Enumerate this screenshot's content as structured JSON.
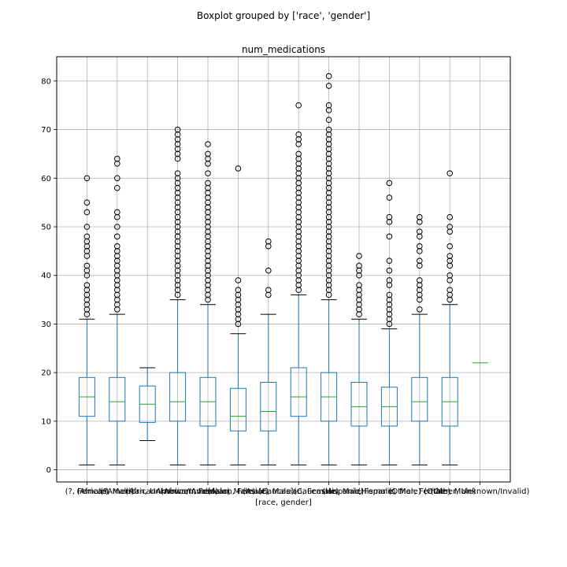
{
  "chart_data": {
    "type": "boxplot",
    "suptitle": "Boxplot grouped by ['race', 'gender']",
    "title": "num_medications",
    "xlabel": "[race, gender]",
    "ylabel": "",
    "ylim": [
      -2.5,
      85
    ],
    "yticks": [
      0,
      10,
      20,
      30,
      40,
      50,
      60,
      70,
      80
    ],
    "grid": true,
    "colors": {
      "box": "#1f77b4",
      "median": "#2ca02c",
      "grid": "#b0b0b0",
      "flier": "#000000"
    },
    "categories": [
      "(?, Female)",
      "(?, Male)",
      "(AfricanAmerican, Unknown/Invalid)",
      "(AfricanAmerican, Female)",
      "(AfricanAmerican, Male)",
      "(Asian, Female)",
      "(Asian, Male)",
      "(Caucasian, Female)",
      "(Caucasian, Male)",
      "(Hispanic, Female)",
      "(Hispanic, Male)",
      "(Other, Female)",
      "(Other, Male)",
      "(Other, Unknown/Invalid)"
    ],
    "boxes": [
      {
        "whislo": 1,
        "q1": 11,
        "med": 15,
        "q3": 19,
        "whishi": 31,
        "fliers": [
          32,
          33,
          34,
          35,
          36,
          37,
          38,
          40,
          41,
          42,
          44,
          45,
          46,
          47,
          48,
          50,
          53,
          55,
          60
        ]
      },
      {
        "whislo": 1,
        "q1": 10,
        "med": 14,
        "q3": 19,
        "whishi": 32,
        "fliers": [
          33,
          34,
          35,
          36,
          37,
          38,
          39,
          40,
          41,
          42,
          43,
          44,
          45,
          46,
          48,
          50,
          52,
          53,
          58,
          60,
          63,
          64
        ]
      },
      {
        "whislo": 6,
        "q1": 9.75,
        "med": 13.5,
        "q3": 17.25,
        "whishi": 21,
        "fliers": []
      },
      {
        "whislo": 1,
        "q1": 10,
        "med": 14,
        "q3": 20,
        "whishi": 35,
        "fliers": [
          36,
          37,
          38,
          39,
          40,
          41,
          42,
          43,
          44,
          45,
          46,
          47,
          48,
          49,
          50,
          51,
          52,
          53,
          54,
          55,
          56,
          57,
          58,
          59,
          60,
          61,
          64,
          65,
          66,
          67,
          68,
          69,
          70
        ]
      },
      {
        "whislo": 1,
        "q1": 9,
        "med": 14,
        "q3": 19,
        "whishi": 34,
        "fliers": [
          35,
          36,
          37,
          38,
          39,
          40,
          41,
          42,
          43,
          44,
          45,
          46,
          47,
          48,
          49,
          50,
          51,
          52,
          53,
          54,
          55,
          56,
          57,
          58,
          59,
          61,
          63,
          64,
          65,
          67
        ]
      },
      {
        "whislo": 1,
        "q1": 8,
        "med": 11,
        "q3": 16.75,
        "whishi": 28,
        "fliers": [
          30,
          31,
          32,
          33,
          34,
          35,
          36,
          37,
          39,
          62
        ]
      },
      {
        "whislo": 1,
        "q1": 8,
        "med": 12,
        "q3": 18,
        "whishi": 32,
        "fliers": [
          36,
          37,
          41,
          46,
          47
        ]
      },
      {
        "whislo": 1,
        "q1": 11,
        "med": 15,
        "q3": 21,
        "whishi": 36,
        "fliers": [
          37,
          38,
          39,
          40,
          41,
          42,
          43,
          44,
          45,
          46,
          47,
          48,
          49,
          50,
          51,
          52,
          53,
          54,
          55,
          56,
          57,
          58,
          59,
          60,
          61,
          62,
          63,
          64,
          65,
          67,
          68,
          69,
          75
        ]
      },
      {
        "whislo": 1,
        "q1": 10,
        "med": 15,
        "q3": 20,
        "whishi": 35,
        "fliers": [
          36,
          37,
          38,
          39,
          40,
          41,
          42,
          43,
          44,
          45,
          46,
          47,
          48,
          49,
          50,
          51,
          52,
          53,
          54,
          55,
          56,
          57,
          58,
          59,
          60,
          61,
          62,
          63,
          64,
          65,
          66,
          67,
          68,
          69,
          70,
          72,
          74,
          75,
          79,
          81
        ]
      },
      {
        "whislo": 1,
        "q1": 9,
        "med": 13,
        "q3": 18,
        "whishi": 31,
        "fliers": [
          32,
          33,
          34,
          35,
          36,
          37,
          38,
          40,
          41,
          42,
          44
        ]
      },
      {
        "whislo": 1,
        "q1": 9,
        "med": 13,
        "q3": 17,
        "whishi": 29,
        "fliers": [
          30,
          31,
          32,
          33,
          34,
          35,
          36,
          38,
          39,
          41,
          43,
          48,
          51,
          52,
          56,
          59
        ]
      },
      {
        "whislo": 1,
        "q1": 10,
        "med": 14,
        "q3": 19,
        "whishi": 32,
        "fliers": [
          33,
          35,
          36,
          37,
          38,
          39,
          42,
          43,
          45,
          46,
          48,
          49,
          51,
          52
        ]
      },
      {
        "whislo": 1,
        "q1": 9,
        "med": 14,
        "q3": 19,
        "whishi": 34,
        "fliers": [
          35,
          36,
          37,
          39,
          40,
          42,
          43,
          44,
          46,
          49,
          50,
          52,
          61
        ]
      },
      {
        "whislo": 22,
        "q1": 22,
        "med": 22,
        "q3": 22,
        "whishi": 22,
        "fliers": []
      }
    ]
  }
}
